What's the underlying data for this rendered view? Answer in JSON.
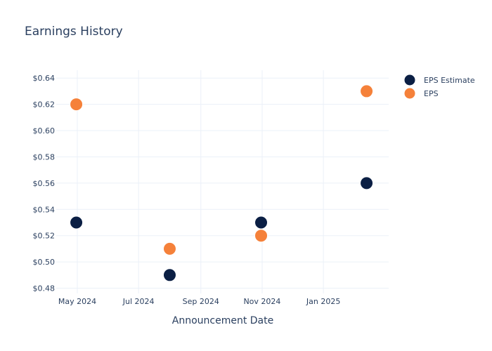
{
  "chart_data": {
    "type": "scatter",
    "title": "Earnings History",
    "xlabel": "Announcement Date",
    "ylabel": "",
    "x_ticks": [
      {
        "date": "2024-05-01",
        "label": "May 2024"
      },
      {
        "date": "2024-07-01",
        "label": "Jul 2024"
      },
      {
        "date": "2024-09-01",
        "label": "Sep 2024"
      },
      {
        "date": "2024-11-01",
        "label": "Nov 2024"
      },
      {
        "date": "2025-01-01",
        "label": "Jan 2025"
      }
    ],
    "y_ticks": [
      {
        "value": 0.48,
        "label": "$0.48"
      },
      {
        "value": 0.5,
        "label": "$0.50"
      },
      {
        "value": 0.52,
        "label": "$0.52"
      },
      {
        "value": 0.54,
        "label": "$0.54"
      },
      {
        "value": 0.56,
        "label": "$0.56"
      },
      {
        "value": 0.58,
        "label": "$0.58"
      },
      {
        "value": 0.6,
        "label": "$0.60"
      },
      {
        "value": 0.62,
        "label": "$0.62"
      },
      {
        "value": 0.64,
        "label": "$0.64"
      }
    ],
    "xlim": [
      "2024-04-10",
      "2025-03-07"
    ],
    "ylim": [
      0.476,
      0.646
    ],
    "grid": true,
    "legend_position": "top-right",
    "series": [
      {
        "name": "EPS Estimate",
        "color": "#0b1f44",
        "points": [
          {
            "x": "2024-04-30",
            "y": 0.53
          },
          {
            "x": "2024-08-01",
            "y": 0.49
          },
          {
            "x": "2024-10-31",
            "y": 0.53
          },
          {
            "x": "2025-02-13",
            "y": 0.56
          }
        ]
      },
      {
        "name": "EPS",
        "color": "#f5813a",
        "points": [
          {
            "x": "2024-04-30",
            "y": 0.62
          },
          {
            "x": "2024-08-01",
            "y": 0.51
          },
          {
            "x": "2024-10-31",
            "y": 0.52
          },
          {
            "x": "2025-02-13",
            "y": 0.63
          }
        ]
      }
    ]
  }
}
